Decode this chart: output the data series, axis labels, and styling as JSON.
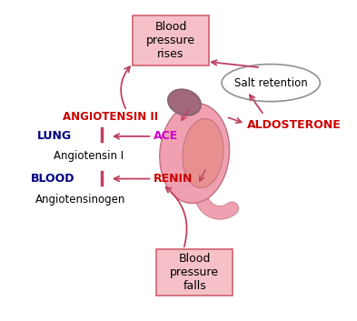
{
  "fig_width": 3.93,
  "fig_height": 3.53,
  "dpi": 100,
  "bg_color": "#ffffff",
  "kidney_color": "#f0a0b0",
  "kidney_dark": "#c07080",
  "kidney_inner_color": "#e89090",
  "adrenal_color": "#a06878",
  "adrenal_edge": "#806070",
  "box_fill": "#f5c0c8",
  "box_edge": "#d06070",
  "ellipse_fill": "#ffffff",
  "ellipse_edge": "#909090",
  "arrow_color": "#c04060",
  "text_aldosterone": "ALDOSTERONE",
  "text_aldosterone_color": "#cc0000",
  "text_angiotensin2": "ANGIOTENSIN II",
  "text_angiotensin2_color": "#cc0000",
  "text_lung": "LUNG",
  "text_lung_color": "#000080",
  "text_ace": "ACE",
  "text_ace_color": "#cc00cc",
  "text_angiotensin1": "Angiotensin I",
  "text_angiotensin1_color": "#000000",
  "text_blood": "BLOOD",
  "text_blood_color": "#000080",
  "text_renin": "RENIN",
  "text_renin_color": "#cc0000",
  "text_angiotensinogen": "Angiotensinogen",
  "text_angiotensinogen_color": "#000000",
  "box_bp_rises": "Blood\npressure\nrises",
  "box_bp_falls": "Blood\npressure\nfalls",
  "ellipse_salt": "Salt retention"
}
